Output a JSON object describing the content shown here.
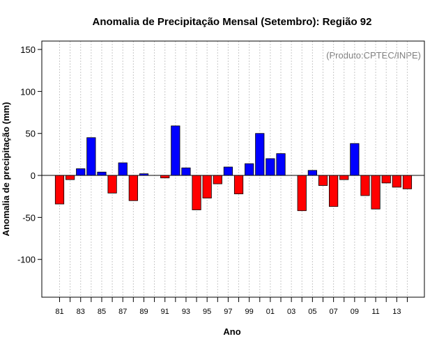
{
  "chart_data": {
    "type": "bar",
    "title": "Anomalia de Precipitação Mensal (Setembro): Região 92",
    "xlabel": "Ano",
    "ylabel": "Anomalia de precipitação (mm)",
    "annotation": "(Produto:CPTEC/INPE)",
    "ylim": [
      -145,
      160
    ],
    "yticks": [
      -100,
      -50,
      0,
      50,
      100,
      150
    ],
    "grid": "vertical-dotted",
    "positive_color": "#0000ff",
    "negative_color": "#ff0000",
    "categories": [
      "81",
      "82",
      "83",
      "84",
      "85",
      "86",
      "87",
      "88",
      "89",
      "90",
      "91",
      "92",
      "93",
      "94",
      "95",
      "96",
      "97",
      "98",
      "99",
      "00",
      "01",
      "02",
      "03",
      "04",
      "05",
      "06",
      "07",
      "08",
      "09",
      "10",
      "11",
      "12",
      "13",
      "14"
    ],
    "tick_labels": [
      "81",
      "83",
      "85",
      "87",
      "89",
      "91",
      "93",
      "95",
      "97",
      "99",
      "01",
      "03",
      "05",
      "07",
      "09",
      "11",
      "13"
    ],
    "values": [
      -34,
      -5,
      8,
      45,
      4,
      -21,
      15,
      -30,
      2,
      0,
      -3,
      59,
      9,
      -41,
      -27,
      -10,
      10,
      -22,
      14,
      50,
      20,
      26,
      0,
      -42,
      6,
      -12,
      -37,
      -5,
      38,
      -24,
      -40,
      -9,
      -14,
      -16
    ]
  }
}
